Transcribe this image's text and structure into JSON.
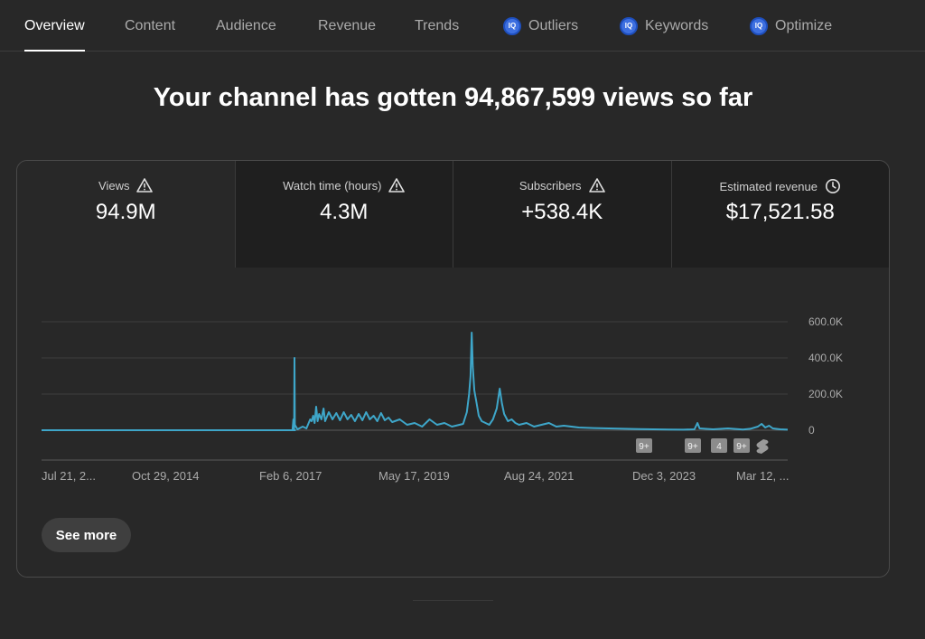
{
  "tabs": [
    {
      "label": "Overview",
      "active": true,
      "iq": false
    },
    {
      "label": "Content",
      "active": false,
      "iq": false
    },
    {
      "label": "Audience",
      "active": false,
      "iq": false
    },
    {
      "label": "Revenue",
      "active": false,
      "iq": false
    },
    {
      "label": "Trends",
      "active": false,
      "iq": false
    },
    {
      "label": "Outliers",
      "active": false,
      "iq": true
    },
    {
      "label": "Keywords",
      "active": false,
      "iq": true
    },
    {
      "label": "Optimize",
      "active": false,
      "iq": true
    }
  ],
  "iq_badge_text": "IQ",
  "headline": "Your channel has gotten 94,867,599 views so far",
  "metrics": [
    {
      "label": "Views",
      "value": "94.9M",
      "icon": "warning-icon"
    },
    {
      "label": "Watch time (hours)",
      "value": "4.3M",
      "icon": "warning-icon"
    },
    {
      "label": "Subscribers",
      "value": "+538.4K",
      "icon": "warning-icon"
    },
    {
      "label": "Estimated revenue",
      "value": "$17,521.58",
      "icon": "clock-icon"
    }
  ],
  "colors": {
    "line": "#3ea6c9",
    "background": "#282828",
    "active_tab": "#ffffff",
    "iq_badge": "#3d6fe0"
  },
  "chart_data": {
    "type": "line",
    "series": [
      {
        "values": [
          [
            0,
            0
          ],
          [
            0.34,
            0
          ],
          [
            0.3365,
            5000
          ],
          [
            0.3375,
            60000
          ],
          [
            0.3385,
            10000
          ],
          [
            0.339,
            400000
          ],
          [
            0.3395,
            30000
          ],
          [
            0.343,
            5000
          ],
          [
            0.35,
            20000
          ],
          [
            0.355,
            10000
          ],
          [
            0.36,
            60000
          ],
          [
            0.362,
            50000
          ],
          [
            0.364,
            80000
          ],
          [
            0.366,
            40000
          ],
          [
            0.368,
            130000
          ],
          [
            0.37,
            50000
          ],
          [
            0.372,
            90000
          ],
          [
            0.375,
            60000
          ],
          [
            0.378,
            120000
          ],
          [
            0.38,
            50000
          ],
          [
            0.385,
            100000
          ],
          [
            0.39,
            60000
          ],
          [
            0.395,
            95000
          ],
          [
            0.4,
            55000
          ],
          [
            0.405,
            100000
          ],
          [
            0.41,
            60000
          ],
          [
            0.415,
            85000
          ],
          [
            0.42,
            50000
          ],
          [
            0.425,
            90000
          ],
          [
            0.43,
            55000
          ],
          [
            0.435,
            100000
          ],
          [
            0.44,
            60000
          ],
          [
            0.445,
            80000
          ],
          [
            0.45,
            50000
          ],
          [
            0.455,
            95000
          ],
          [
            0.46,
            55000
          ],
          [
            0.465,
            70000
          ],
          [
            0.47,
            45000
          ],
          [
            0.48,
            60000
          ],
          [
            0.49,
            30000
          ],
          [
            0.5,
            40000
          ],
          [
            0.51,
            20000
          ],
          [
            0.52,
            60000
          ],
          [
            0.53,
            30000
          ],
          [
            0.54,
            40000
          ],
          [
            0.55,
            20000
          ],
          [
            0.56,
            30000
          ],
          [
            0.565,
            35000
          ],
          [
            0.57,
            100000
          ],
          [
            0.573,
            200000
          ],
          [
            0.575,
            300000
          ],
          [
            0.5765,
            540000
          ],
          [
            0.578,
            350000
          ],
          [
            0.58,
            220000
          ],
          [
            0.583,
            150000
          ],
          [
            0.586,
            80000
          ],
          [
            0.59,
            50000
          ],
          [
            0.595,
            40000
          ],
          [
            0.6,
            30000
          ],
          [
            0.605,
            60000
          ],
          [
            0.61,
            120000
          ],
          [
            0.614,
            230000
          ],
          [
            0.617,
            150000
          ],
          [
            0.62,
            90000
          ],
          [
            0.625,
            50000
          ],
          [
            0.63,
            60000
          ],
          [
            0.635,
            40000
          ],
          [
            0.64,
            30000
          ],
          [
            0.65,
            40000
          ],
          [
            0.66,
            20000
          ],
          [
            0.67,
            30000
          ],
          [
            0.68,
            40000
          ],
          [
            0.69,
            20000
          ],
          [
            0.7,
            25000
          ],
          [
            0.72,
            15000
          ],
          [
            0.74,
            12000
          ],
          [
            0.76,
            10000
          ],
          [
            0.78,
            8000
          ],
          [
            0.8,
            6000
          ],
          [
            0.82,
            5000
          ],
          [
            0.84,
            4000
          ],
          [
            0.86,
            3000
          ],
          [
            0.875,
            5000
          ],
          [
            0.879,
            40000
          ],
          [
            0.882,
            10000
          ],
          [
            0.9,
            5000
          ],
          [
            0.92,
            10000
          ],
          [
            0.94,
            4000
          ],
          [
            0.95,
            8000
          ],
          [
            0.96,
            20000
          ],
          [
            0.965,
            35000
          ],
          [
            0.97,
            15000
          ],
          [
            0.975,
            25000
          ],
          [
            0.98,
            10000
          ],
          [
            0.99,
            5000
          ],
          [
            1.0,
            3000
          ]
        ]
      }
    ],
    "x_ticks": [
      "Jul 21, 2...",
      "Oct 29, 2014",
      "Feb 6, 2017",
      "May 17, 2019",
      "Aug 24, 2021",
      "Dec 3, 2023",
      "Mar 12, ..."
    ],
    "y_ticks": [
      "600.0K",
      "400.0K",
      "200.0K",
      "0"
    ],
    "ylim": [
      0,
      600000
    ],
    "markers": [
      {
        "label": "9+",
        "type": "badge"
      },
      {
        "label": "9+",
        "type": "badge"
      },
      {
        "label": "4",
        "type": "badge"
      },
      {
        "label": "9+",
        "type": "badge"
      },
      {
        "label": "",
        "type": "shorts-icon"
      }
    ]
  },
  "see_more": "See more"
}
